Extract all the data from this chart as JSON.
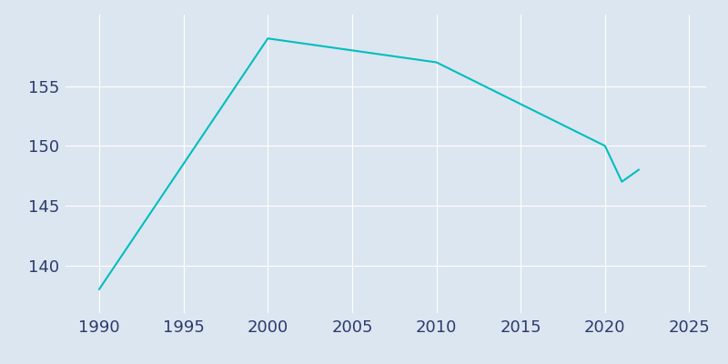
{
  "years": [
    1990,
    2000,
    2005,
    2010,
    2020,
    2021,
    2022
  ],
  "population": [
    138,
    159,
    158,
    157,
    150,
    147,
    148
  ],
  "line_color": "#00BEBE",
  "background_color": "#dce6f0",
  "plot_bg_color": "#dce6f0",
  "grid_color": "#ffffff",
  "tick_color": "#2d3a6e",
  "title": "",
  "xlabel": "",
  "ylabel": "",
  "xlim": [
    1988,
    2026
  ],
  "ylim": [
    136,
    161
  ],
  "xticks": [
    1990,
    1995,
    2000,
    2005,
    2010,
    2015,
    2020,
    2025
  ],
  "yticks": [
    140,
    145,
    150,
    155
  ],
  "line_width": 1.5,
  "tick_fontsize": 13
}
